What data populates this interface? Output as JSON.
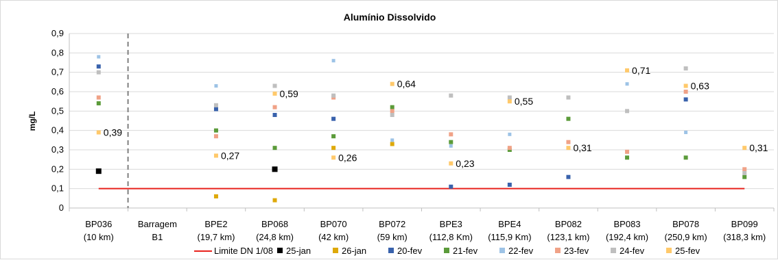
{
  "chart_data": {
    "type": "scatter",
    "title": "Alumínio Dissolvido",
    "xlabel": "",
    "ylabel": "mg/L",
    "ylim": [
      0,
      0.9
    ],
    "yticks": [
      "0",
      "0,1",
      "0,2",
      "0,3",
      "0,4",
      "0,5",
      "0,6",
      "0,7",
      "0,8",
      "0,9"
    ],
    "grid": "horizontal",
    "legend_position": "bottom",
    "categories": [
      {
        "name": "BP036",
        "dist": "(10 km)"
      },
      {
        "name": "Barragem",
        "dist": "B1"
      },
      {
        "name": "BPE2",
        "dist": "(19,7 km)"
      },
      {
        "name": "BP068",
        "dist": "(24,8 km)"
      },
      {
        "name": "BP070",
        "dist": "(42 km)"
      },
      {
        "name": "BP072",
        "dist": "(59 km)"
      },
      {
        "name": "BPE3",
        "dist": "(112,8 Km)"
      },
      {
        "name": "BPE4",
        "dist": "(115,9 Km)"
      },
      {
        "name": "BP082",
        "dist": "(123,1 km)"
      },
      {
        "name": "BP083",
        "dist": "(192,4 km)"
      },
      {
        "name": "BP078",
        "dist": "(250,9 km)"
      },
      {
        "name": "BP099",
        "dist": "(318,3 km)"
      }
    ],
    "limit": {
      "name": "Limite DN 1/08",
      "value": 0.1,
      "color": "#e8221c"
    },
    "series": [
      {
        "name": "25-jan",
        "color": "#000000",
        "size": 8,
        "values": [
          0.19,
          null,
          null,
          0.2,
          null,
          null,
          null,
          null,
          null,
          null,
          null,
          null
        ]
      },
      {
        "name": "26-jan",
        "color": "#dea90a",
        "size": 6,
        "values": [
          null,
          null,
          0.06,
          0.04,
          0.31,
          0.33,
          null,
          null,
          null,
          null,
          null,
          null
        ]
      },
      {
        "name": "20-fev",
        "color": "#3962ac",
        "size": 6,
        "values": [
          0.73,
          null,
          0.51,
          0.48,
          0.46,
          null,
          0.11,
          0.12,
          0.16,
          null,
          0.56,
          null
        ]
      },
      {
        "name": "21-fev",
        "color": "#5b9b3a",
        "size": 6,
        "values": [
          0.54,
          null,
          0.4,
          0.31,
          0.37,
          0.52,
          0.34,
          0.3,
          0.46,
          0.26,
          0.26,
          0.16
        ]
      },
      {
        "name": "22-fev",
        "color": "#9dc3e6",
        "size": 5,
        "values": [
          0.78,
          null,
          0.63,
          null,
          0.76,
          0.35,
          0.32,
          0.38,
          null,
          0.64,
          0.39,
          null
        ]
      },
      {
        "name": "23-fev",
        "color": "#f0a287",
        "size": 6,
        "values": [
          0.57,
          null,
          0.37,
          0.52,
          0.57,
          0.5,
          0.38,
          0.31,
          0.34,
          0.29,
          0.6,
          0.2
        ]
      },
      {
        "name": "24-fev",
        "color": "#bfbfbf",
        "size": 6,
        "values": [
          0.7,
          null,
          0.53,
          0.63,
          0.58,
          0.48,
          0.58,
          0.57,
          0.57,
          0.5,
          0.72,
          0.18
        ]
      },
      {
        "name": "25-fev",
        "color": "#ffc96b",
        "size": 6,
        "values": [
          0.39,
          null,
          0.27,
          0.59,
          0.26,
          0.64,
          0.23,
          0.55,
          0.31,
          0.71,
          0.63,
          0.31
        ]
      }
    ],
    "data_labels": [
      {
        "category": 0,
        "value": 0.39,
        "text": "0,39"
      },
      {
        "category": 2,
        "value": 0.27,
        "text": "0,27"
      },
      {
        "category": 3,
        "value": 0.59,
        "text": "0,59"
      },
      {
        "category": 4,
        "value": 0.26,
        "text": "0,26"
      },
      {
        "category": 5,
        "value": 0.64,
        "text": "0,64"
      },
      {
        "category": 6,
        "value": 0.23,
        "text": "0,23"
      },
      {
        "category": 7,
        "value": 0.55,
        "text": "0,55"
      },
      {
        "category": 8,
        "value": 0.31,
        "text": "0,31"
      },
      {
        "category": 9,
        "value": 0.71,
        "text": "0,71"
      },
      {
        "category": 10,
        "value": 0.63,
        "text": "0,63"
      },
      {
        "category": 11,
        "value": 0.31,
        "text": "0,31"
      }
    ],
    "separator_after_category": 1
  }
}
